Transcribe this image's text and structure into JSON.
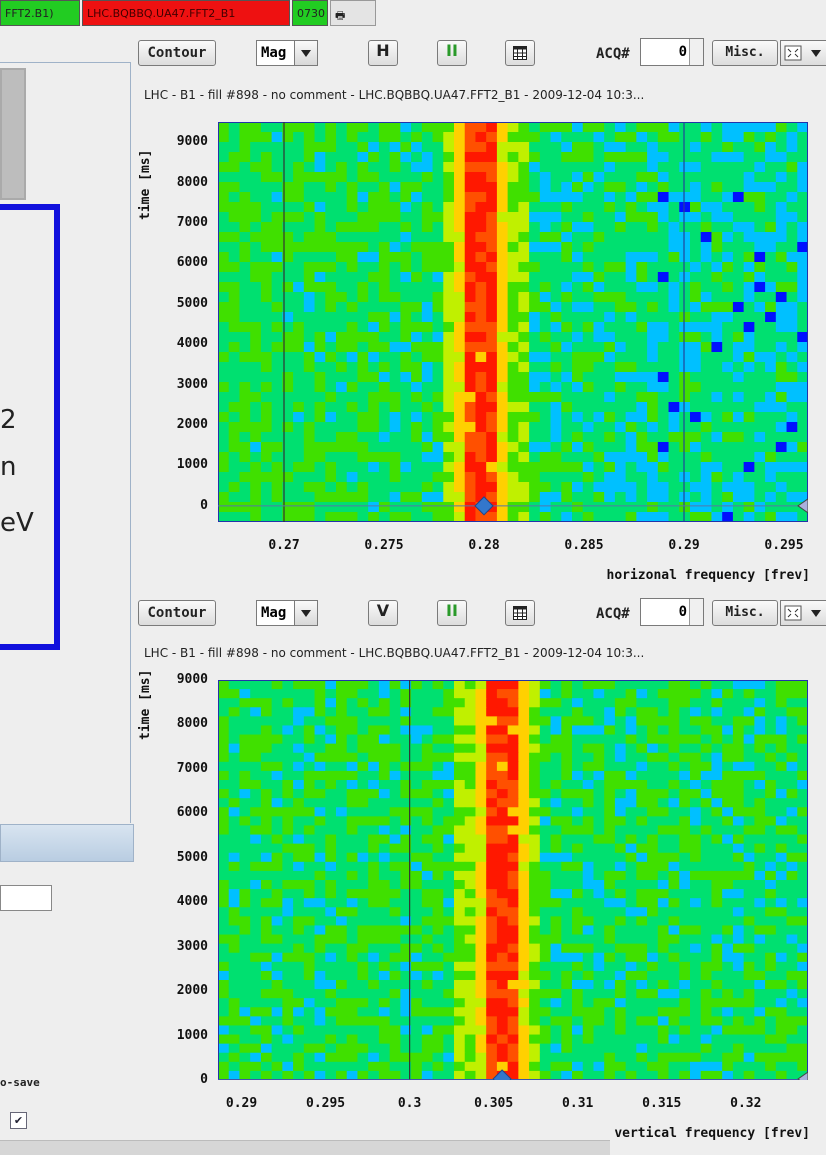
{
  "top_bar": {
    "item1": "FFT2.B1)",
    "item2": "LHC.BQBBQ.UA47.FFT2_B1",
    "item3": "0730"
  },
  "left_panel": {
    "fragment_lines": [
      "2",
      "n",
      "eV"
    ],
    "autosave_label": "o-save",
    "checkbox_mark": "✔"
  },
  "panels": [
    {
      "toolbar": {
        "contour": "Contour",
        "mag": "Mag",
        "plane": "H",
        "pause": "II",
        "acq_label": "ACQ#",
        "acq_value": "0",
        "misc": "Misc."
      },
      "subtitle": "LHC - B1 - fill #898 - no comment - LHC.BQBBQ.UA47.FFT2_B1 - 2009-12-04 10:3...",
      "y_axis_label": "time [ms]",
      "x_axis_label": "horizonal frequency [frev]",
      "y_ticks": [
        "9000",
        "8000",
        "7000",
        "6000",
        "5000",
        "4000",
        "3000",
        "2000",
        "1000",
        "0"
      ],
      "x_ticks": [
        "0.27",
        "0.275",
        "0.28",
        "0.285",
        "0.29",
        "0.295"
      ]
    },
    {
      "toolbar": {
        "contour": "Contour",
        "mag": "Mag",
        "plane": "V",
        "pause": "II",
        "acq_label": "ACQ#",
        "acq_value": "0",
        "misc": "Misc."
      },
      "subtitle": "LHC - B1 - fill #898 - no comment - LHC.BQBBQ.UA47.FFT2_B1 - 2009-12-04 10:3...",
      "y_axis_label": "time [ms]",
      "x_axis_label": "vertical frequency [frev]",
      "y_ticks": [
        "9000",
        "8000",
        "7000",
        "6000",
        "5000",
        "4000",
        "3000",
        "2000",
        "1000",
        "0"
      ],
      "x_ticks": [
        "0.29",
        "0.295",
        "0.3",
        "0.305",
        "0.31",
        "0.315",
        "0.32"
      ]
    }
  ],
  "chart_data": [
    {
      "type": "heatmap",
      "xlabel": "horizonal frequency [frev]",
      "ylabel": "time [ms]",
      "xlim": [
        0.2667,
        0.2962
      ],
      "ylim": [
        -400,
        9500
      ],
      "x_peak": 0.28,
      "marker_lines_x": [
        0.27,
        0.29
      ],
      "marker_y": 0,
      "colors": [
        "#0010ff",
        "#00c0ff",
        "#00e070",
        "#40e000",
        "#c0f000",
        "#ffd000",
        "#ff5000",
        "#ff1800"
      ]
    },
    {
      "type": "heatmap",
      "xlabel": "vertical frequency [frev]",
      "ylabel": "time [ms]",
      "xlim": [
        0.2886,
        0.3237
      ],
      "ylim": [
        0,
        9000
      ],
      "x_peak": 0.3055,
      "marker_lines_x": [
        0.3
      ],
      "marker_y": 0,
      "colors": [
        "#0010ff",
        "#00c0ff",
        "#00e070",
        "#40e000",
        "#c0f000",
        "#ffd000",
        "#ff5000",
        "#ff1800"
      ]
    }
  ]
}
